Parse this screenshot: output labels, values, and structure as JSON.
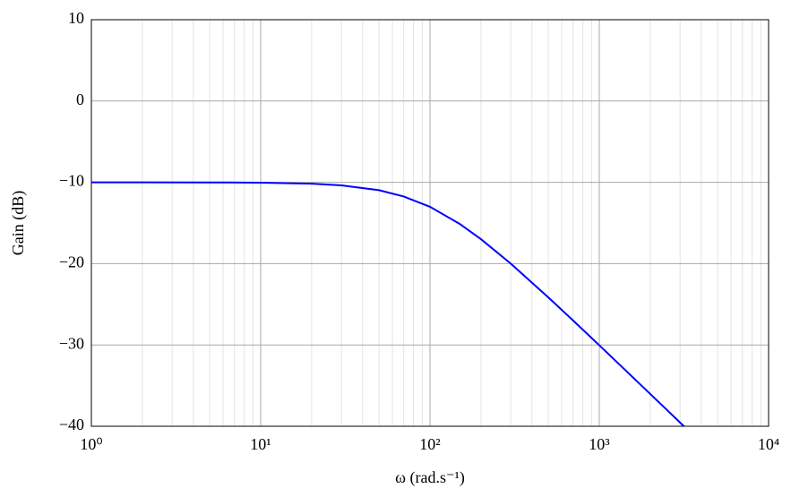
{
  "chart_data": {
    "type": "line",
    "x_label": "ω (rad.s⁻¹)",
    "y_label": "Gain (dB)",
    "x": [
      1,
      2,
      5,
      10,
      20,
      30,
      50,
      70,
      100,
      150,
      200,
      300,
      500,
      700,
      1000,
      2000,
      3162
    ],
    "values": [
      -10.0,
      -10.0,
      -10.01,
      -10.04,
      -10.17,
      -10.37,
      -10.97,
      -11.74,
      -13.01,
      -15.12,
      -16.99,
      -20.0,
      -24.15,
      -26.99,
      -30.04,
      -36.03,
      -40.0
    ],
    "color": "#0000ff",
    "xscale": "log",
    "xlim": [
      1,
      10000
    ],
    "ylim": [
      -40,
      10
    ],
    "xticks": [
      {
        "value": 1,
        "label": "10⁰"
      },
      {
        "value": 10,
        "label": "10¹"
      },
      {
        "value": 100,
        "label": "10²"
      },
      {
        "value": 1000,
        "label": "10³"
      },
      {
        "value": 10000,
        "label": "10⁴"
      }
    ],
    "xminorticks": [
      2,
      3,
      4,
      5,
      6,
      7,
      8,
      9,
      20,
      30,
      40,
      50,
      60,
      70,
      80,
      90,
      200,
      300,
      400,
      500,
      600,
      700,
      800,
      900,
      2000,
      3000,
      4000,
      5000,
      6000,
      7000,
      8000,
      9000
    ],
    "yticks": [
      {
        "value": -40,
        "label": "−40"
      },
      {
        "value": -30,
        "label": "−30"
      },
      {
        "value": -20,
        "label": "−20"
      },
      {
        "value": -10,
        "label": "−10"
      },
      0,
      10
    ],
    "grid": true
  }
}
